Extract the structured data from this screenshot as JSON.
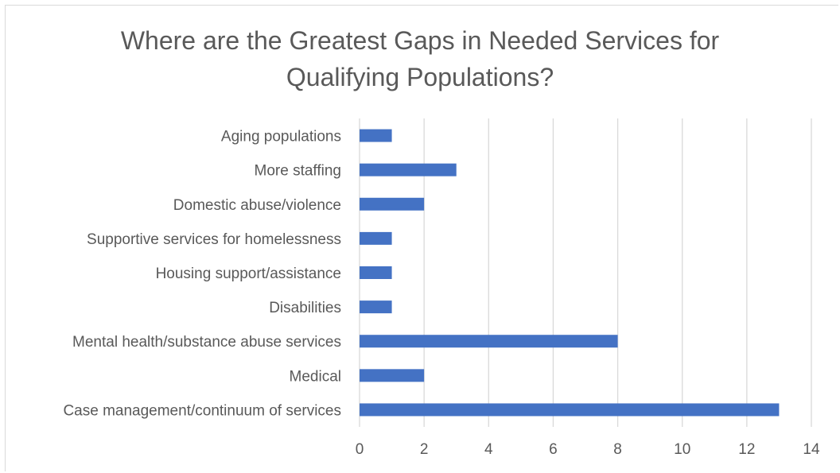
{
  "chart_data": {
    "type": "bar",
    "orientation": "horizontal",
    "title_lines": [
      "Where are the Greatest Gaps in Needed Services for",
      "Qualifying Populations?"
    ],
    "categories": [
      "Aging populations",
      "More staffing",
      "Domestic abuse/violence",
      "Supportive services for homelessness",
      "Housing support/assistance",
      "Disabilities",
      "Mental health/substance abuse services",
      "Medical",
      "Case management/continuum of services"
    ],
    "values": [
      1,
      3,
      2,
      1,
      1,
      1,
      8,
      2,
      13
    ],
    "xlim": [
      0,
      14
    ],
    "xticks": [
      0,
      2,
      4,
      6,
      8,
      10,
      12,
      14
    ],
    "grid": "vertical",
    "legend": "none",
    "bar_color": "#4472c4",
    "grid_color": "#d9d9d9"
  }
}
